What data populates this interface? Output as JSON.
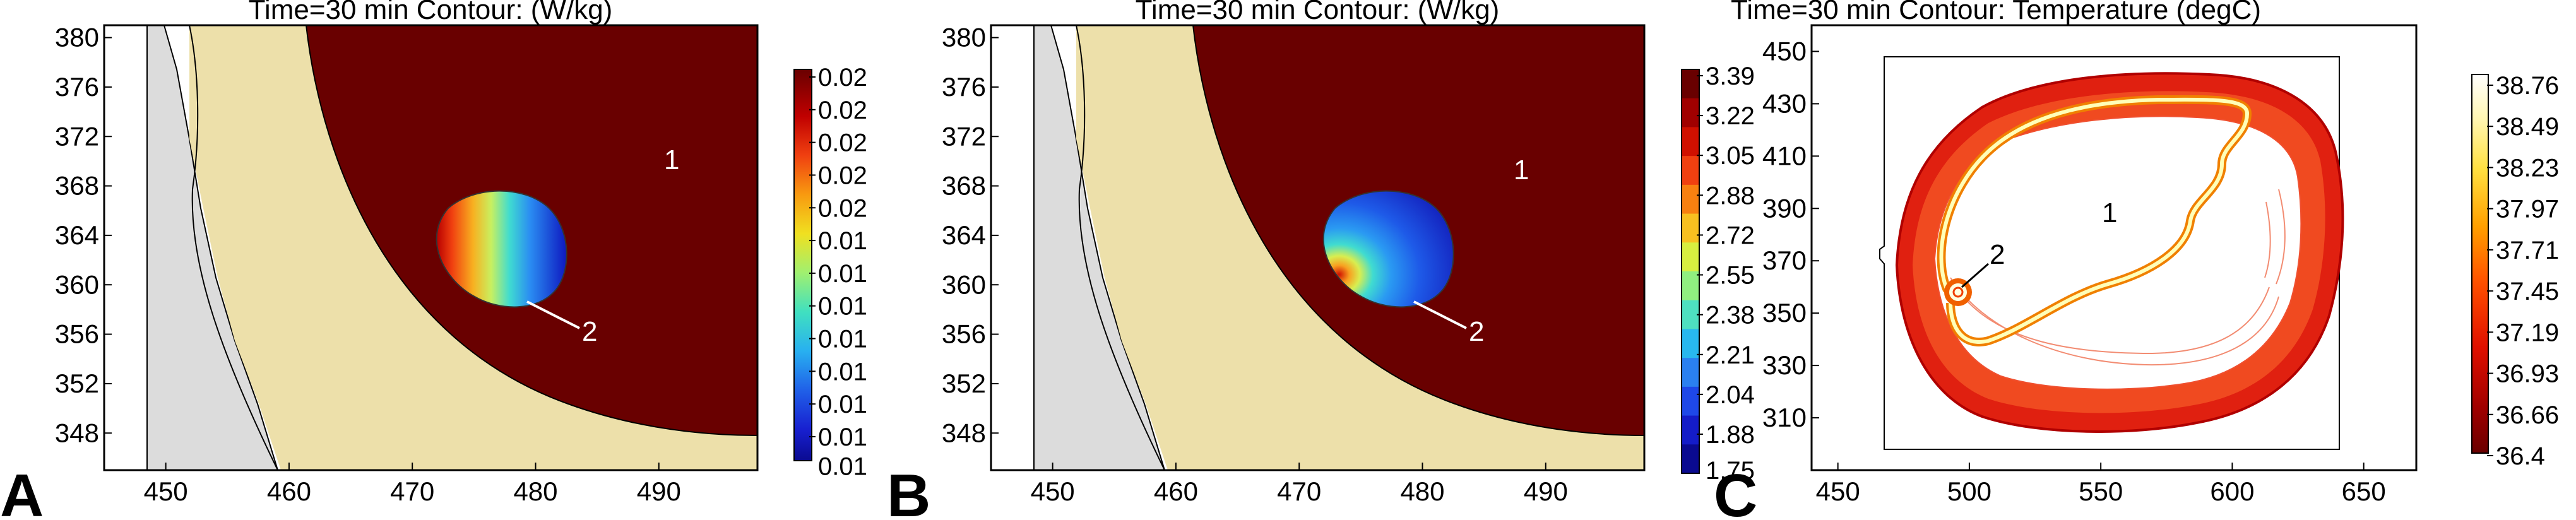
{
  "colors": {
    "dark_red": "#690000",
    "tissue": "#ede0aa",
    "gray": "#dcdcdc",
    "temp_high": "#ffffee"
  },
  "chart_data": [
    {
      "type": "heatmap",
      "panel_label": "A",
      "title": "Time=30 min   Contour: (W/kg)",
      "xlim": [
        445,
        498
      ],
      "ylim": [
        345,
        381
      ],
      "xticks": [
        450,
        460,
        470,
        480,
        490
      ],
      "yticks": [
        348,
        352,
        356,
        360,
        364,
        368,
        372,
        376,
        380
      ],
      "colorbar": {
        "labels": [
          "0.02",
          "0.02",
          "0.02",
          "0.02",
          "0.02",
          "0.01",
          "0.01",
          "0.01",
          "0.01",
          "0.01",
          "0.01",
          "0.01"
        ],
        "bottom_label": "0.01",
        "colors": [
          "#690000",
          "#b00000",
          "#e02010",
          "#f06010",
          "#fa9a10",
          "#f7d820",
          "#b8ee58",
          "#5ee6a8",
          "#2ed0e8",
          "#2a9af2",
          "#1e56e8",
          "#1a22d8",
          "#0c0c9c"
        ]
      },
      "region_labels": [
        "1",
        "2"
      ]
    },
    {
      "type": "heatmap",
      "panel_label": "B",
      "title": "Time=30 min   Contour: (W/kg)",
      "xlim": [
        445,
        498
      ],
      "ylim": [
        345,
        381
      ],
      "xticks": [
        450,
        460,
        470,
        480,
        490
      ],
      "yticks": [
        348,
        352,
        356,
        360,
        364,
        368,
        372,
        376,
        380
      ],
      "colorbar": {
        "labels": [
          "3.39",
          "3.22",
          "3.05",
          "2.88",
          "2.72",
          "2.55",
          "2.38",
          "2.21",
          "2.04",
          "1.88"
        ],
        "bottom_label": "1.75",
        "colors": [
          "#690000",
          "#a00000",
          "#d01000",
          "#f04010",
          "#f88010",
          "#f8c020",
          "#d8ee40",
          "#90ee80",
          "#4ee0c0",
          "#28b8ee",
          "#2a80f0",
          "#1e48e8",
          "#141cc8",
          "#0a0a90"
        ]
      },
      "region_labels": [
        "1",
        "2"
      ]
    },
    {
      "type": "heatmap",
      "panel_label": "C",
      "title": "Time=30 min   Contour: Temperature (degC)",
      "xlim": [
        440,
        670
      ],
      "ylim": [
        290,
        460
      ],
      "xticks": [
        450,
        500,
        550,
        600,
        650
      ],
      "yticks": [
        310,
        330,
        350,
        370,
        390,
        410,
        430,
        450
      ],
      "colorbar": {
        "labels": [
          "38.76",
          "38.49",
          "38.23",
          "37.97",
          "37.71",
          "37.45",
          "37.19",
          "36.93",
          "36.66",
          "36.4"
        ],
        "colors": [
          "#ffffff",
          "#fff8c0",
          "#fff060",
          "#ffd000",
          "#ffa000",
          "#ff6000",
          "#f02000",
          "#d00000",
          "#a00000",
          "#700000"
        ]
      },
      "region_labels": [
        "1",
        "2"
      ]
    }
  ]
}
